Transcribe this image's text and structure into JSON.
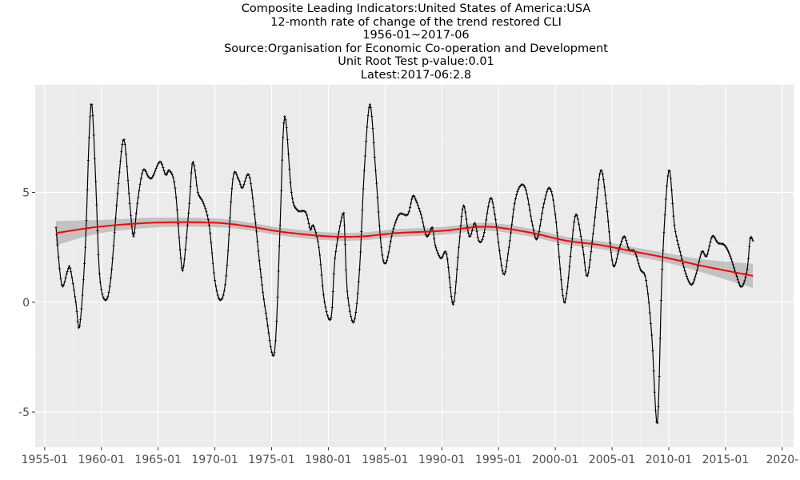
{
  "title_lines": [
    "Composite Leading Indicators:United States of America:USA",
    "12-month rate of change of the trend restored CLI",
    "1956-01~2017-06",
    "Source:Organisation for Economic Co-operation and Development",
    "Unit Root Test p-value:0.01",
    "Latest:2017-06:2.8"
  ],
  "chart_data": {
    "type": "line",
    "x_type": "date",
    "xlim": [
      "1954-03",
      "2021-01"
    ],
    "ylim": [
      -6.6,
      9.9
    ],
    "x_ticks": [
      "1955-01",
      "1960-01",
      "1965-01",
      "1970-01",
      "1975-01",
      "1980-01",
      "1985-01",
      "1990-01",
      "1995-01",
      "2000-01",
      "2005-01",
      "2010-01",
      "2015-01",
      "2020-01"
    ],
    "x_tick_labels": [
      "1955-01",
      "1960-01",
      "1965-01",
      "1970-01",
      "1975-01",
      "1980-01",
      "1985-01",
      "1990-01",
      "1995-01",
      "2000-01",
      "2005-01",
      "2010-01",
      "2015-01",
      "2020-"
    ],
    "y_ticks": [
      -5,
      0,
      5
    ],
    "y_tick_labels": [
      "-5",
      "0",
      "5"
    ],
    "grid": true,
    "background": "#ebebeb",
    "series": [
      {
        "style": "line-with-point-markers",
        "color": "#000000",
        "points": [
          [
            "1956-01",
            3.4
          ],
          [
            "1956-07",
            0.8
          ],
          [
            "1957-01",
            1.4
          ],
          [
            "1957-04",
            1.55
          ],
          [
            "1957-10",
            0.0
          ],
          [
            "1958-02",
            -1.1
          ],
          [
            "1958-08",
            2.5
          ],
          [
            "1958-12",
            7.5
          ],
          [
            "1959-03",
            9.0
          ],
          [
            "1959-07",
            5.5
          ],
          [
            "1959-11",
            1.3
          ],
          [
            "1960-05",
            0.1
          ],
          [
            "1960-11",
            1.1
          ],
          [
            "1961-07",
            5.4
          ],
          [
            "1962-01",
            7.4
          ],
          [
            "1962-07",
            4.5
          ],
          [
            "1962-11",
            3.0
          ],
          [
            "1963-03",
            4.5
          ],
          [
            "1963-09",
            6.0
          ],
          [
            "1964-03",
            5.7
          ],
          [
            "1964-07",
            5.7
          ],
          [
            "1965-03",
            6.4
          ],
          [
            "1965-09",
            5.8
          ],
          [
            "1966-01",
            6.0
          ],
          [
            "1966-07",
            5.2
          ],
          [
            "1967-01",
            2.0
          ],
          [
            "1967-04",
            1.65
          ],
          [
            "1967-10",
            4.5
          ],
          [
            "1968-01",
            6.3
          ],
          [
            "1968-04",
            6.0
          ],
          [
            "1968-07",
            5.0
          ],
          [
            "1969-01",
            4.5
          ],
          [
            "1969-07",
            3.5
          ],
          [
            "1970-01",
            1.0
          ],
          [
            "1970-07",
            0.1
          ],
          [
            "1971-01",
            1.2
          ],
          [
            "1971-08",
            5.6
          ],
          [
            "1972-02",
            5.6
          ],
          [
            "1972-06",
            5.2
          ],
          [
            "1973-01",
            5.8
          ],
          [
            "1973-07",
            4.0
          ],
          [
            "1974-01",
            1.5
          ],
          [
            "1974-07",
            -0.5
          ],
          [
            "1975-04",
            -2.3
          ],
          [
            "1975-10",
            3.5
          ],
          [
            "1976-01",
            7.5
          ],
          [
            "1976-04",
            8.3
          ],
          [
            "1976-10",
            5.0
          ],
          [
            "1977-04",
            4.2
          ],
          [
            "1978-01",
            4.1
          ],
          [
            "1978-06",
            3.3
          ],
          [
            "1978-09",
            3.5
          ],
          [
            "1979-03",
            2.5
          ],
          [
            "1979-09",
            0.0
          ],
          [
            "1980-04",
            -0.7
          ],
          [
            "1980-08",
            2.0
          ],
          [
            "1981-04",
            4.0
          ],
          [
            "1981-06",
            3.5
          ],
          [
            "1981-09",
            0.5
          ],
          [
            "1982-04",
            -0.9
          ],
          [
            "1982-10",
            1.5
          ],
          [
            "1983-03",
            6.0
          ],
          [
            "1983-09",
            9.0
          ],
          [
            "1984-03",
            6.0
          ],
          [
            "1984-09",
            2.5
          ],
          [
            "1985-02",
            1.8
          ],
          [
            "1985-09",
            3.2
          ],
          [
            "1986-04",
            4.0
          ],
          [
            "1987-01",
            4.0
          ],
          [
            "1987-06",
            4.8
          ],
          [
            "1987-09",
            4.7
          ],
          [
            "1988-03",
            4.0
          ],
          [
            "1988-09",
            3.0
          ],
          [
            "1989-03",
            3.4
          ],
          [
            "1989-06",
            2.6
          ],
          [
            "1989-12",
            2.0
          ],
          [
            "1990-06",
            2.2
          ],
          [
            "1991-01",
            -0.1
          ],
          [
            "1991-07",
            2.5
          ],
          [
            "1991-12",
            4.4
          ],
          [
            "1992-06",
            3.0
          ],
          [
            "1992-12",
            3.6
          ],
          [
            "1993-04",
            2.8
          ],
          [
            "1993-09",
            3.0
          ],
          [
            "1994-04",
            4.7
          ],
          [
            "1994-09",
            4.0
          ],
          [
            "1995-06",
            1.3
          ],
          [
            "1995-12",
            2.5
          ],
          [
            "1996-06",
            4.5
          ],
          [
            "1996-12",
            5.3
          ],
          [
            "1997-06",
            5.1
          ],
          [
            "1998-01",
            3.5
          ],
          [
            "1998-06",
            2.9
          ],
          [
            "1999-01",
            4.5
          ],
          [
            "1999-07",
            5.2
          ],
          [
            "2000-01",
            4.0
          ],
          [
            "2000-09",
            0.3
          ],
          [
            "2001-01",
            0.4
          ],
          [
            "2001-06",
            2.5
          ],
          [
            "2001-11",
            4.0
          ],
          [
            "2002-06",
            2.5
          ],
          [
            "2002-11",
            1.2
          ],
          [
            "2003-06",
            3.5
          ],
          [
            "2004-01",
            6.0
          ],
          [
            "2004-07",
            4.5
          ],
          [
            "2005-02",
            1.7
          ],
          [
            "2005-09",
            2.5
          ],
          [
            "2006-02",
            3.0
          ],
          [
            "2006-07",
            2.4
          ],
          [
            "2007-01",
            2.3
          ],
          [
            "2007-07",
            1.5
          ],
          [
            "2008-01",
            1.0
          ],
          [
            "2008-07",
            -1.5
          ],
          [
            "2009-01",
            -5.5
          ],
          [
            "2009-06",
            1.5
          ],
          [
            "2010-01",
            6.0
          ],
          [
            "2010-07",
            3.5
          ],
          [
            "2011-01",
            2.3
          ],
          [
            "2011-07",
            1.3
          ],
          [
            "2012-01",
            0.8
          ],
          [
            "2012-06",
            1.3
          ],
          [
            "2012-12",
            2.3
          ],
          [
            "2013-05",
            2.1
          ],
          [
            "2013-11",
            3.0
          ],
          [
            "2014-05",
            2.7
          ],
          [
            "2014-12",
            2.6
          ],
          [
            "2015-06",
            2.1
          ],
          [
            "2015-12",
            1.3
          ],
          [
            "2016-06",
            0.7
          ],
          [
            "2016-12",
            1.5
          ],
          [
            "2017-03",
            2.9
          ],
          [
            "2017-06",
            2.8
          ]
        ]
      },
      {
        "style": "smooth-trend",
        "color": "#ff0000",
        "band_color": "#bebebe",
        "points": [
          [
            "1956-01",
            3.15
          ],
          [
            "1960-01",
            3.45
          ],
          [
            "1965-01",
            3.63
          ],
          [
            "1970-01",
            3.62
          ],
          [
            "1973-01",
            3.45
          ],
          [
            "1976-01",
            3.2
          ],
          [
            "1980-01",
            3.0
          ],
          [
            "1983-01",
            3.0
          ],
          [
            "1986-01",
            3.15
          ],
          [
            "1990-01",
            3.25
          ],
          [
            "1993-01",
            3.42
          ],
          [
            "1995-01",
            3.4
          ],
          [
            "1998-01",
            3.15
          ],
          [
            "2001-01",
            2.8
          ],
          [
            "2004-01",
            2.6
          ],
          [
            "2007-01",
            2.3
          ],
          [
            "2010-01",
            2.0
          ],
          [
            "2013-01",
            1.65
          ],
          [
            "2017-06",
            1.2
          ]
        ],
        "band_halfwidth": [
          0.55,
          0.3,
          0.22,
          0.2,
          0.18,
          0.18,
          0.18,
          0.18,
          0.18,
          0.18,
          0.18,
          0.18,
          0.18,
          0.18,
          0.18,
          0.2,
          0.22,
          0.3,
          0.55
        ]
      }
    ]
  }
}
